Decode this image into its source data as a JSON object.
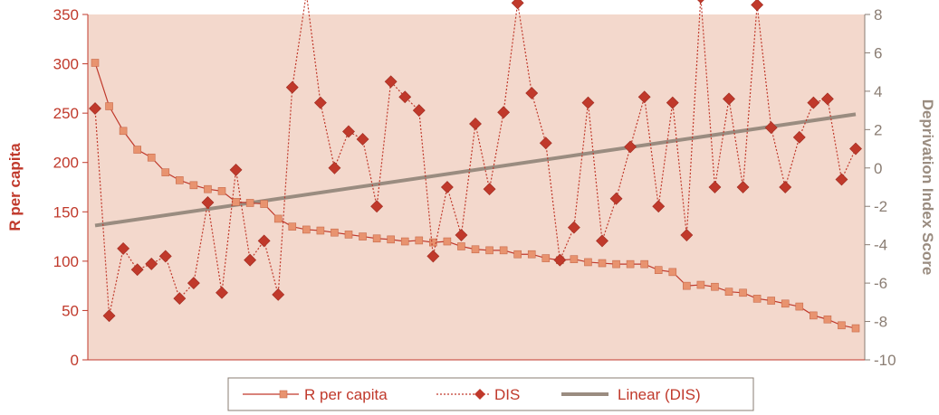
{
  "chart_data": {
    "type": "line",
    "xlabel": "",
    "y_left": {
      "label": "R per capita",
      "range": [
        0,
        350
      ],
      "ticks": [
        "0",
        "50",
        "100",
        "150",
        "200",
        "250",
        "300",
        "350"
      ]
    },
    "y_right": {
      "label": "Deprivation Index Score",
      "range": [
        -10,
        8
      ],
      "ticks": [
        "-10",
        "-8",
        "-6",
        "-4",
        "-2",
        "0",
        "2",
        "4",
        "6",
        "8"
      ]
    },
    "grid": false,
    "legend_position": "bottom",
    "colors": {
      "plot_bg": "#f3d8cc",
      "rpc_line": "#c0392b",
      "rpc_marker": "#e8936f",
      "dis_line": "#c0392b",
      "dis_marker": "#c0392b",
      "trend": "#9a8c80",
      "axis_left": "#c0392b",
      "axis_right": "#8a7d73"
    },
    "series": [
      {
        "name": "R per capita",
        "axis": "left",
        "values": [
          301,
          257,
          232,
          213,
          205,
          190,
          182,
          177,
          173,
          171,
          160,
          159,
          158,
          143,
          135,
          132,
          131,
          129,
          127,
          125,
          123,
          122,
          120,
          121,
          119,
          120,
          115,
          112,
          111,
          111,
          107,
          107,
          103,
          101,
          102,
          99,
          98,
          97,
          97,
          97,
          91,
          89,
          75,
          76,
          74,
          69,
          68,
          62,
          60,
          57,
          54,
          45,
          41,
          35,
          32
        ]
      },
      {
        "name": "DIS",
        "axis": "right",
        "values": [
          3.1,
          -7.7,
          -4.2,
          -5.3,
          -5.0,
          -4.6,
          -6.8,
          -6.0,
          -1.8,
          -6.5,
          -0.1,
          -4.8,
          -3.8,
          -6.6,
          4.2,
          9.1,
          3.4,
          0.0,
          1.9,
          1.5,
          -2.0,
          4.5,
          3.7,
          3.0,
          -4.6,
          -1.0,
          -3.5,
          2.3,
          -1.1,
          2.9,
          8.6,
          3.9,
          1.3,
          -4.8,
          -3.1,
          3.4,
          -3.8,
          -1.6,
          1.1,
          3.7,
          -2.0,
          3.4,
          -3.5,
          8.9,
          -1.0,
          3.6,
          -1.0,
          8.5,
          2.1,
          -1.0,
          1.6,
          3.4,
          3.6,
          -0.6,
          1.0
        ]
      },
      {
        "name": "Linear (DIS)",
        "axis": "right",
        "type": "trendline",
        "start": -3.0,
        "end": 2.8
      }
    ]
  }
}
